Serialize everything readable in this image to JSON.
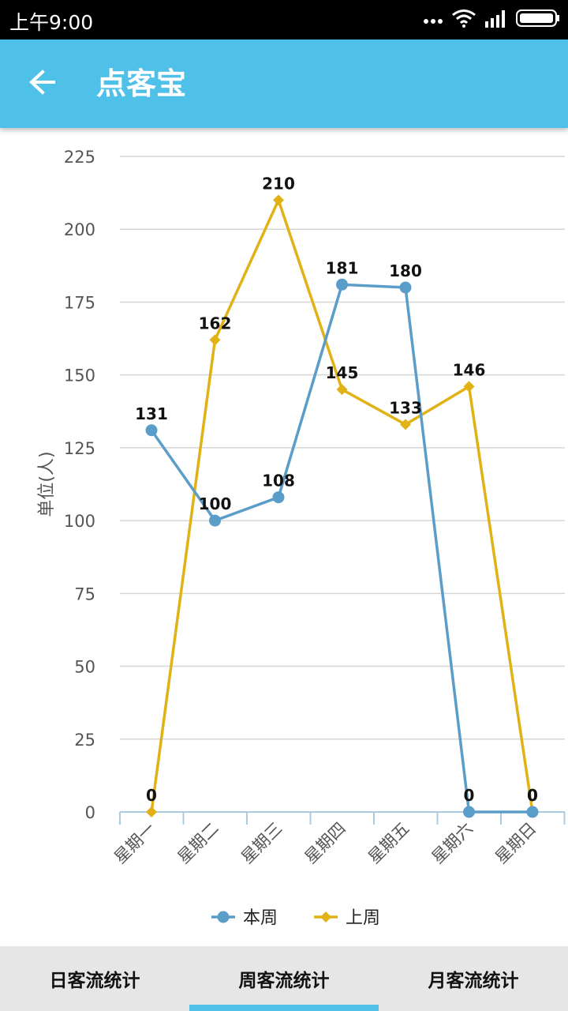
{
  "status_bar": {
    "time": "上午9:00"
  },
  "app_bar": {
    "title": "点客宝",
    "back_icon": "arrow-left-icon"
  },
  "chart_data": {
    "type": "line",
    "ylabel": "单位(人)",
    "ylim": [
      0,
      225
    ],
    "y_ticks": [
      0,
      25,
      50,
      75,
      100,
      125,
      150,
      175,
      200,
      225
    ],
    "categories": [
      "星期一",
      "星期二",
      "星期三",
      "星期四",
      "星期五",
      "星期六",
      "星期日"
    ],
    "grid": true,
    "legend": "bottom",
    "series": [
      {
        "name": "本周",
        "values": [
          131,
          100,
          108,
          181,
          180,
          0,
          0
        ],
        "color": "#5b9dc9",
        "marker": "circle"
      },
      {
        "name": "上周",
        "values": [
          0,
          162,
          210,
          145,
          133,
          146,
          0
        ],
        "color": "#e1b216",
        "marker": "diamond"
      }
    ]
  },
  "tabs": {
    "items": [
      {
        "label": "日客流统计"
      },
      {
        "label": "周客流统计"
      },
      {
        "label": "月客流统计"
      }
    ],
    "selected_index": 1,
    "accent_color": "#4fc0e8"
  }
}
